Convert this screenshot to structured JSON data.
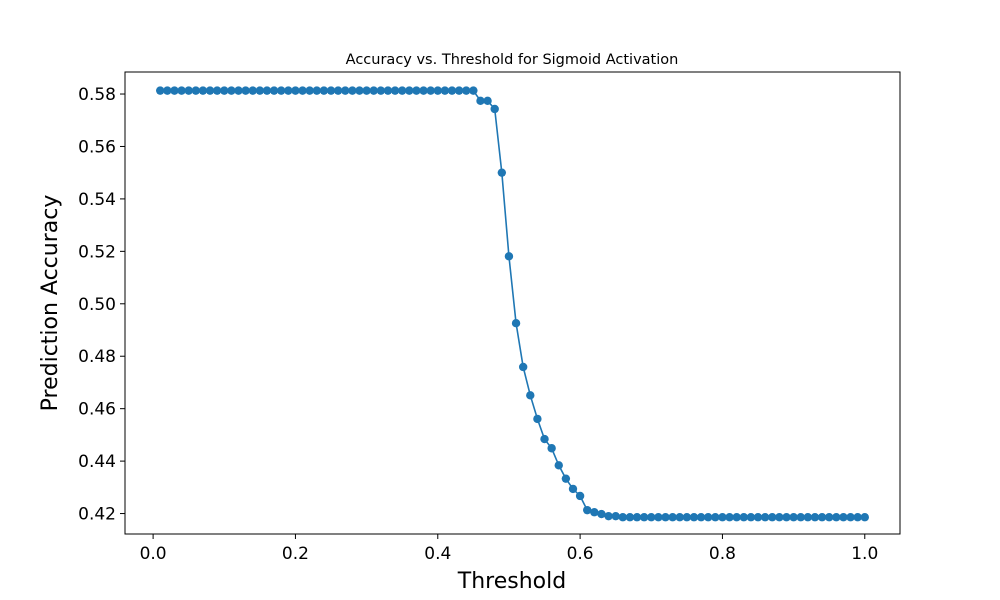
{
  "chart_data": {
    "type": "line",
    "title": "Accuracy vs. Threshold for Sigmoid Activation",
    "xlabel": "Threshold",
    "ylabel": "Prediction Accuracy",
    "xlim": [
      -0.0395,
      1.0495
    ],
    "ylim": [
      0.4122,
      0.5884
    ],
    "xticks": [
      0.0,
      0.2,
      0.4,
      0.6,
      0.8,
      1.0
    ],
    "xtick_labels": [
      "0.0",
      "0.2",
      "0.4",
      "0.6",
      "0.8",
      "1.0"
    ],
    "yticks": [
      0.42,
      0.44,
      0.46,
      0.48,
      0.5,
      0.52,
      0.54,
      0.56,
      0.58
    ],
    "ytick_labels": [
      "0.42",
      "0.44",
      "0.46",
      "0.48",
      "0.50",
      "0.52",
      "0.54",
      "0.56",
      "0.58"
    ],
    "grid": false,
    "marker": "circle",
    "color": "#1f77b4",
    "series": [
      {
        "x": [
          0.01,
          0.02,
          0.03,
          0.04,
          0.05,
          0.06,
          0.07,
          0.08,
          0.09,
          0.1,
          0.11,
          0.12,
          0.13,
          0.14,
          0.15,
          0.16,
          0.17,
          0.18,
          0.19,
          0.2,
          0.21,
          0.22,
          0.23,
          0.24,
          0.25,
          0.26,
          0.27,
          0.28,
          0.29,
          0.3,
          0.31,
          0.32,
          0.33,
          0.34,
          0.35,
          0.36,
          0.37,
          0.38,
          0.39,
          0.4,
          0.41,
          0.42,
          0.43,
          0.44,
          0.45,
          0.46,
          0.47,
          0.48,
          0.49,
          0.5,
          0.51,
          0.52,
          0.53,
          0.54,
          0.55,
          0.56,
          0.57,
          0.58,
          0.59,
          0.6,
          0.61,
          0.62,
          0.63,
          0.64,
          0.65,
          0.66,
          0.67,
          0.68,
          0.69,
          0.7,
          0.71,
          0.72,
          0.73,
          0.74,
          0.75,
          0.76,
          0.77,
          0.78,
          0.79,
          0.8,
          0.81,
          0.82,
          0.83,
          0.84,
          0.85,
          0.86,
          0.87,
          0.88,
          0.89,
          0.9,
          0.91,
          0.92,
          0.93,
          0.94,
          0.95,
          0.96,
          0.97,
          0.98,
          0.99,
          1.0
        ],
        "values": [
          0.5813,
          0.5813,
          0.5813,
          0.5813,
          0.5813,
          0.5813,
          0.5813,
          0.5813,
          0.5813,
          0.5813,
          0.5813,
          0.5813,
          0.5813,
          0.5813,
          0.5813,
          0.5813,
          0.5813,
          0.5813,
          0.5813,
          0.5813,
          0.5813,
          0.5813,
          0.5813,
          0.5813,
          0.5813,
          0.5813,
          0.5813,
          0.5813,
          0.5813,
          0.5813,
          0.5813,
          0.5813,
          0.5813,
          0.5813,
          0.5813,
          0.5813,
          0.5813,
          0.5813,
          0.5813,
          0.5813,
          0.5813,
          0.5813,
          0.5813,
          0.5813,
          0.5813,
          0.5774,
          0.5774,
          0.5743,
          0.55,
          0.5181,
          0.4926,
          0.4759,
          0.4651,
          0.4561,
          0.4484,
          0.4449,
          0.4384,
          0.4333,
          0.4294,
          0.4267,
          0.4213,
          0.4205,
          0.4198,
          0.419,
          0.419,
          0.4186,
          0.4186,
          0.4186,
          0.4186,
          0.4186,
          0.4186,
          0.4186,
          0.4186,
          0.4186,
          0.4186,
          0.4186,
          0.4186,
          0.4186,
          0.4186,
          0.4186,
          0.4186,
          0.4186,
          0.4186,
          0.4186,
          0.4186,
          0.4186,
          0.4186,
          0.4186,
          0.4186,
          0.4186,
          0.4186,
          0.4186,
          0.4186,
          0.4186,
          0.4186,
          0.4186,
          0.4186,
          0.4186,
          0.4186,
          0.4186
        ]
      }
    ]
  }
}
